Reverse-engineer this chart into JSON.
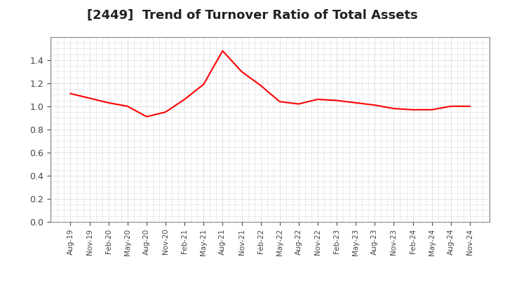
{
  "title": "[2449]  Trend of Turnover Ratio of Total Assets",
  "title_fontsize": 13,
  "line_color": "#FF0000",
  "line_width": 1.5,
  "background_color": "#FFFFFF",
  "grid_color": "#AAAAAA",
  "ylim": [
    0.0,
    1.6
  ],
  "yticks": [
    0.0,
    0.2,
    0.4,
    0.6,
    0.8,
    1.0,
    1.2,
    1.4
  ],
  "x_labels": [
    "Aug-19",
    "Nov-19",
    "Feb-20",
    "May-20",
    "Aug-20",
    "Nov-20",
    "Feb-21",
    "May-21",
    "Aug-21",
    "Nov-21",
    "Feb-22",
    "May-22",
    "Aug-22",
    "Nov-22",
    "Feb-23",
    "May-23",
    "Aug-23",
    "Nov-23",
    "Feb-24",
    "May-24",
    "Aug-24",
    "Nov-24"
  ],
  "values": [
    1.11,
    1.07,
    1.03,
    1.0,
    0.91,
    0.95,
    1.06,
    1.19,
    1.48,
    1.3,
    1.18,
    1.04,
    1.02,
    1.06,
    1.05,
    1.03,
    1.01,
    0.98,
    0.97,
    0.97,
    1.0,
    1.0
  ]
}
